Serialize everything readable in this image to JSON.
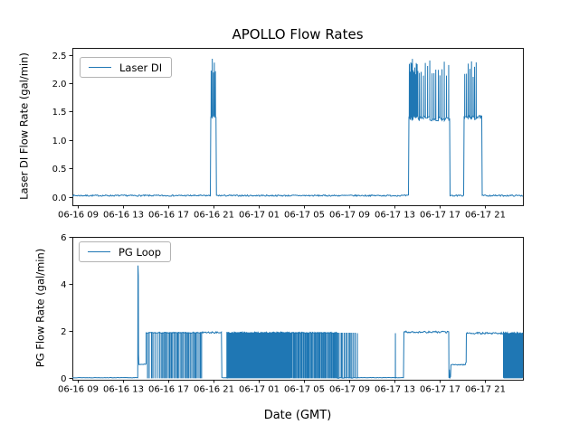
{
  "figure": {
    "title": "APOLLO Flow Rates",
    "xlabel": "Date (GMT)",
    "line_color": "#1f77b4",
    "background": "#ffffff"
  },
  "chart_data": [
    {
      "type": "line",
      "series": [
        {
          "name": "Laser DI",
          "color": "#1f77b4"
        }
      ],
      "legend": {
        "label": "Laser DI",
        "position": "upper left"
      },
      "ylabel": "Laser DI Flow Rate (gal/min)",
      "ylim": [
        -0.15,
        2.62
      ],
      "yticks": [
        0.0,
        0.5,
        1.0,
        1.5,
        2.0,
        2.5
      ],
      "ytick_labels": [
        "0.0",
        "0.5",
        "1.0",
        "1.5",
        "2.0",
        "2.5"
      ],
      "xlim_hours": [
        8.52,
        48.36
      ],
      "xtick_hours": [
        9,
        13,
        17,
        21,
        25,
        29,
        33,
        37,
        41,
        45
      ],
      "xtick_labels": [
        "06-16 09",
        "06-16 13",
        "06-16 17",
        "06-16 21",
        "06-17 01",
        "06-17 05",
        "06-17 09",
        "06-17 13",
        "06-17 17",
        "06-17 21"
      ],
      "grid": false,
      "seed": 7,
      "segments": [
        {
          "kind": "flat",
          "h0": 8.52,
          "h1": 20.72,
          "y": 0.02,
          "noise": 0.012
        },
        {
          "kind": "spiky",
          "h0": 20.76,
          "h1": 21.22,
          "base": 1.4,
          "peak": 2.45,
          "spikes": 5,
          "noise": 0.04
        },
        {
          "kind": "flat",
          "h0": 21.26,
          "h1": 38.24,
          "y": 0.02,
          "noise": 0.012
        },
        {
          "kind": "spiky",
          "h0": 38.28,
          "h1": 39.1,
          "base": 1.4,
          "peak": 2.44,
          "spikes": 12,
          "noise": 0.05
        },
        {
          "kind": "spiky",
          "h0": 39.1,
          "h1": 41.88,
          "base": 1.38,
          "peak": 2.43,
          "spikes": 15,
          "noise": 0.05
        },
        {
          "kind": "flat",
          "h0": 41.92,
          "h1": 43.12,
          "y": 0.02,
          "noise": 0.012
        },
        {
          "kind": "spiky",
          "h0": 43.16,
          "h1": 44.3,
          "base": 1.4,
          "peak": 2.4,
          "spikes": 8,
          "noise": 0.05
        },
        {
          "kind": "level",
          "h0": 44.3,
          "h1": 44.72,
          "y": 1.4,
          "noise": 0.03
        },
        {
          "kind": "flat",
          "h0": 44.76,
          "h1": 48.36,
          "y": 0.02,
          "noise": 0.012
        }
      ]
    },
    {
      "type": "line",
      "series": [
        {
          "name": "PG Loop",
          "color": "#1f77b4"
        }
      ],
      "legend": {
        "label": "PG Loop",
        "position": "upper left"
      },
      "ylabel": "PG Flow Rate (gal/min)",
      "ylim": [
        -0.08,
        6.0
      ],
      "yticks": [
        0,
        2,
        4,
        6
      ],
      "ytick_labels": [
        "0",
        "2",
        "4",
        "6"
      ],
      "xlim_hours": [
        8.52,
        48.36
      ],
      "xtick_hours": [
        9,
        13,
        17,
        21,
        25,
        29,
        33,
        37,
        41,
        45
      ],
      "xtick_labels": [
        "06-16 09",
        "06-16 13",
        "06-16 17",
        "06-16 21",
        "06-17 01",
        "06-17 05",
        "06-17 09",
        "06-17 13",
        "06-17 17",
        "06-17 21"
      ],
      "grid": false,
      "seed": 13,
      "segments": [
        {
          "kind": "flat",
          "h0": 8.52,
          "h1": 14.28,
          "y": 0.01,
          "noise": 0.008
        },
        {
          "kind": "points",
          "pts": [
            [
              14.3,
              0.01
            ],
            [
              14.32,
              4.78
            ],
            [
              14.35,
              4.35
            ],
            [
              14.37,
              1.0
            ],
            [
              14.4,
              0.58
            ]
          ]
        },
        {
          "kind": "level",
          "h0": 14.4,
          "h1": 15.04,
          "y": 0.58,
          "noise": 0.02
        },
        {
          "kind": "osc",
          "h0": 15.04,
          "h1": 16.3,
          "hi": 1.92,
          "lo": 0,
          "n": 7,
          "duty": 0.7
        },
        {
          "kind": "osc",
          "h0": 16.3,
          "h1": 20.0,
          "hi": 1.92,
          "lo": 0,
          "n": 30,
          "duty": 0.7
        },
        {
          "kind": "level",
          "h0": 20.0,
          "h1": 21.7,
          "y": 1.93,
          "noise": 0.035
        },
        {
          "kind": "flat",
          "h0": 21.74,
          "h1": 22.14,
          "y": 0.01,
          "noise": 0.008
        },
        {
          "kind": "solid",
          "h0": 22.18,
          "h1": 27.9,
          "hi": 1.92,
          "lo": 0,
          "n": 62
        },
        {
          "kind": "osc",
          "h0": 27.9,
          "h1": 31.9,
          "hi": 1.92,
          "lo": 0,
          "n": 42,
          "duty": 0.55
        },
        {
          "kind": "osc",
          "h0": 31.9,
          "h1": 33.6,
          "hi": 1.9,
          "lo": 0,
          "n": 12,
          "duty": 0.2
        },
        {
          "kind": "spike",
          "h": 33.72,
          "y": 1.9
        },
        {
          "kind": "flat",
          "h0": 33.8,
          "h1": 37.04,
          "y": 0.01,
          "noise": 0.008
        },
        {
          "kind": "spike",
          "h": 37.08,
          "y": 1.9
        },
        {
          "kind": "flat",
          "h0": 37.14,
          "h1": 37.8,
          "y": 0.01,
          "noise": 0.008
        },
        {
          "kind": "level",
          "h0": 37.84,
          "h1": 41.8,
          "y": 1.95,
          "noise": 0.04
        },
        {
          "kind": "points",
          "pts": [
            [
              41.82,
              0.0
            ],
            [
              41.86,
              0.35
            ],
            [
              41.9,
              0.0
            ],
            [
              41.96,
              0.05
            ],
            [
              42.0,
              0.55
            ]
          ]
        },
        {
          "kind": "level",
          "h0": 42.0,
          "h1": 43.26,
          "y": 0.56,
          "noise": 0.02
        },
        {
          "kind": "points",
          "pts": [
            [
              43.28,
              0.62
            ],
            [
              43.34,
              0.66
            ],
            [
              43.36,
              1.9
            ]
          ]
        },
        {
          "kind": "level",
          "h0": 43.36,
          "h1": 46.64,
          "y": 1.9,
          "noise": 0.04
        },
        {
          "kind": "solid",
          "h0": 46.64,
          "h1": 48.36,
          "hi": 1.9,
          "lo": 0,
          "n": 24
        }
      ]
    }
  ]
}
